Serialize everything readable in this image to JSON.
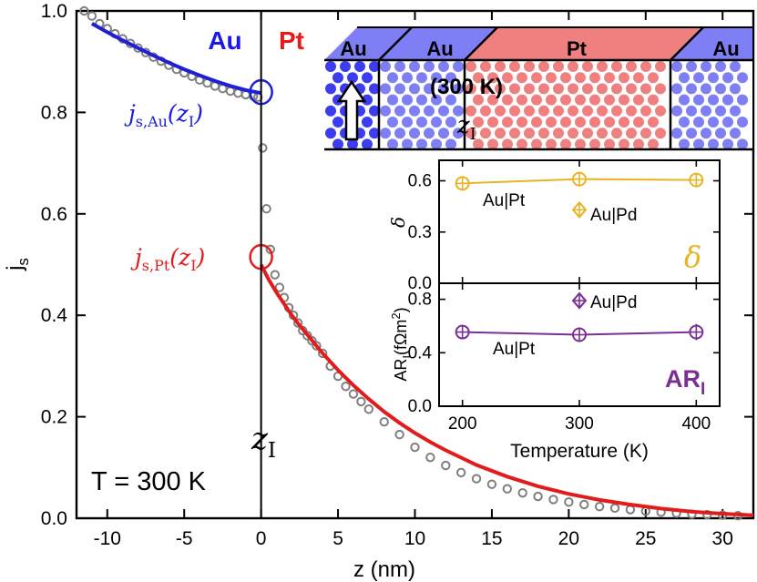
{
  "chart_data": [
    {
      "type": "scatter",
      "xlabel": "z (nm)",
      "ylabel": "j",
      "ylabel_sub": "s",
      "xlim": [
        -12,
        32
      ],
      "ylim": [
        0,
        1.0
      ],
      "xticks": [
        "-10",
        "-5",
        "0",
        "5",
        "10",
        "15",
        "20",
        "25",
        "30"
      ],
      "yticks": [
        "0.0",
        "0.2",
        "0.4",
        "0.6",
        "0.8",
        "1.0"
      ],
      "region_labels": {
        "left": "Au",
        "right": "Pt"
      },
      "temperature_label": "T = 300 K",
      "interface_label": {
        "main": "z",
        "sub": "I"
      },
      "interface_x": 0,
      "annotations": {
        "js_au": {
          "main": "j",
          "sub": "s,Au",
          "arg": "(z",
          "arg_sub": "I",
          "close": ")",
          "value": 0.84
        },
        "js_pt": {
          "main": "j",
          "sub": "s,Pt",
          "arg": "(z",
          "arg_sub": "I",
          "close": ")",
          "value": 0.515
        }
      },
      "series": [
        {
          "kind": "data",
          "marker": "open-circle",
          "color": "#7f7f7f",
          "x": [
            -11.5,
            -11.0,
            -10.5,
            -10.0,
            -9.5,
            -9.0,
            -8.5,
            -8.0,
            -7.5,
            -7.0,
            -6.5,
            -6.0,
            -5.5,
            -5.0,
            -4.5,
            -4.0,
            -3.5,
            -3.0,
            -2.5,
            -2.0,
            -1.5,
            -1.0,
            -0.5,
            -0.2,
            0.1,
            0.35,
            0.6,
            0.9,
            1.2,
            1.5,
            1.8,
            2.1,
            2.4,
            2.7,
            3.0,
            3.3,
            3.6,
            4.0,
            4.5,
            5.0,
            5.5,
            6.0,
            6.5,
            7.0,
            8.0,
            9.0,
            10.0,
            11.0,
            12.0,
            13.0,
            14.0,
            15.0,
            16.0,
            17.0,
            18.0,
            19.0,
            20.0,
            21.0,
            22.0,
            23.0,
            24.0,
            25.0,
            26.0,
            27.0,
            28.0,
            29.0,
            30.0,
            31.0
          ],
          "y": [
            1.0,
            0.99,
            0.975,
            0.965,
            0.955,
            0.945,
            0.936,
            0.927,
            0.918,
            0.909,
            0.901,
            0.893,
            0.885,
            0.878,
            0.871,
            0.864,
            0.858,
            0.852,
            0.847,
            0.842,
            0.838,
            0.835,
            0.832,
            0.83,
            0.73,
            0.61,
            0.53,
            0.48,
            0.455,
            0.435,
            0.415,
            0.4,
            0.385,
            0.37,
            0.36,
            0.35,
            0.34,
            0.325,
            0.3,
            0.28,
            0.26,
            0.245,
            0.23,
            0.215,
            0.19,
            0.165,
            0.14,
            0.12,
            0.104,
            0.09,
            0.078,
            0.067,
            0.058,
            0.05,
            0.043,
            0.037,
            0.032,
            0.027,
            0.023,
            0.02,
            0.017,
            0.014,
            0.012,
            0.01,
            0.008,
            0.007,
            0.006,
            0.005
          ]
        },
        {
          "kind": "fit-au",
          "color": "#1f1fd6",
          "x": [
            -11,
            -10,
            -9,
            -8,
            -7,
            -6,
            -5,
            -4,
            -3,
            -2,
            -1,
            0
          ],
          "y": [
            0.975,
            0.958,
            0.942,
            0.927,
            0.912,
            0.898,
            0.885,
            0.873,
            0.862,
            0.852,
            0.844,
            0.838
          ]
        },
        {
          "kind": "fit-pt",
          "color": "#e01c1c",
          "x": [
            0,
            0.5,
            1,
            1.5,
            2,
            2.5,
            3,
            4,
            5,
            6,
            7,
            8,
            9,
            10,
            11,
            12,
            14,
            16,
            18,
            20,
            22,
            24,
            26,
            28,
            30,
            32
          ],
          "y": [
            0.5,
            0.47,
            0.445,
            0.422,
            0.4,
            0.38,
            0.362,
            0.325,
            0.292,
            0.262,
            0.235,
            0.21,
            0.188,
            0.168,
            0.15,
            0.134,
            0.105,
            0.082,
            0.063,
            0.048,
            0.036,
            0.027,
            0.019,
            0.013,
            0.009,
            0.006
          ]
        }
      ]
    },
    {
      "type": "line",
      "inset": "delta",
      "ylabel": "δ",
      "xlim": [
        180,
        420
      ],
      "ylim": [
        0,
        0.72
      ],
      "yticks": [
        "0.0",
        "0.3",
        "0.6"
      ],
      "panel_label": "δ",
      "color": "#e8b422",
      "series": [
        {
          "name": "Au|Pt",
          "marker": "circle-plus",
          "x": [
            200,
            300,
            400
          ],
          "y": [
            0.585,
            0.61,
            0.605
          ]
        },
        {
          "name": "Au|Pd",
          "marker": "diamond-plus",
          "x": [
            300
          ],
          "y": [
            0.43
          ]
        }
      ]
    },
    {
      "type": "line",
      "inset": "ARI",
      "ylabel": "AR",
      "ylabel_sub": "I",
      "ylabel_unit": "(fΩm",
      "ylabel_unit_sup": "2",
      "ylabel_unit_close": ")",
      "xlabel": "Temperature (K)",
      "xlim": [
        180,
        420
      ],
      "ylim": [
        0,
        0.92
      ],
      "xticks": [
        "200",
        "300",
        "400"
      ],
      "yticks": [
        "0.0",
        "0.4",
        "0.8"
      ],
      "panel_label": "AR",
      "panel_label_sub": "I",
      "color": "#7b2f94",
      "series": [
        {
          "name": "Au|Pt",
          "marker": "circle-plus",
          "x": [
            200,
            300,
            400
          ],
          "y": [
            0.555,
            0.535,
            0.555
          ],
          "err": [
            0.05,
            0.02,
            0.06
          ]
        },
        {
          "name": "Au|Pd",
          "marker": "diamond-plus",
          "x": [
            300
          ],
          "y": [
            0.79
          ]
        }
      ]
    }
  ],
  "schematic": {
    "layers": [
      "Au",
      "Au",
      "Pt",
      "Au"
    ],
    "temperature": "(300 K)",
    "interface_label": {
      "main": "z",
      "sub": "I"
    },
    "colors": {
      "au_dark": "#3c3cf0",
      "au_light": "#7f7ff5",
      "pt": "#f08080"
    }
  }
}
